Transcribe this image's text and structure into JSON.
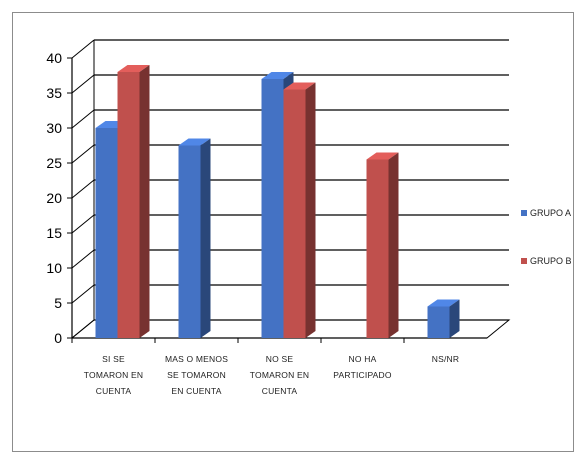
{
  "chart_data": {
    "type": "bar",
    "title": "",
    "xlabel": "",
    "ylabel": "",
    "ylim": [
      0,
      40
    ],
    "yticks": [
      0,
      5,
      10,
      15,
      20,
      25,
      30,
      35,
      40
    ],
    "grid": true,
    "legend_position": "right",
    "three_d": true,
    "categories": [
      [
        "SI SE",
        "TOMARON EN",
        "CUENTA"
      ],
      [
        "MAS O MENOS",
        "SE TOMARON",
        "EN CUENTA"
      ],
      [
        "NO SE",
        "TOMARON EN",
        "CUENTA"
      ],
      [
        "NO HA",
        "PARTICIPADO"
      ],
      [
        "NS/NR"
      ]
    ],
    "series": [
      {
        "name": "GRUPO A",
        "color": "#4472C4",
        "values": [
          30,
          27.5,
          37,
          null,
          4.5
        ]
      },
      {
        "name": "GRUPO B",
        "color": "#C0504D",
        "values": [
          38,
          null,
          35.5,
          25.5,
          null
        ]
      }
    ]
  }
}
